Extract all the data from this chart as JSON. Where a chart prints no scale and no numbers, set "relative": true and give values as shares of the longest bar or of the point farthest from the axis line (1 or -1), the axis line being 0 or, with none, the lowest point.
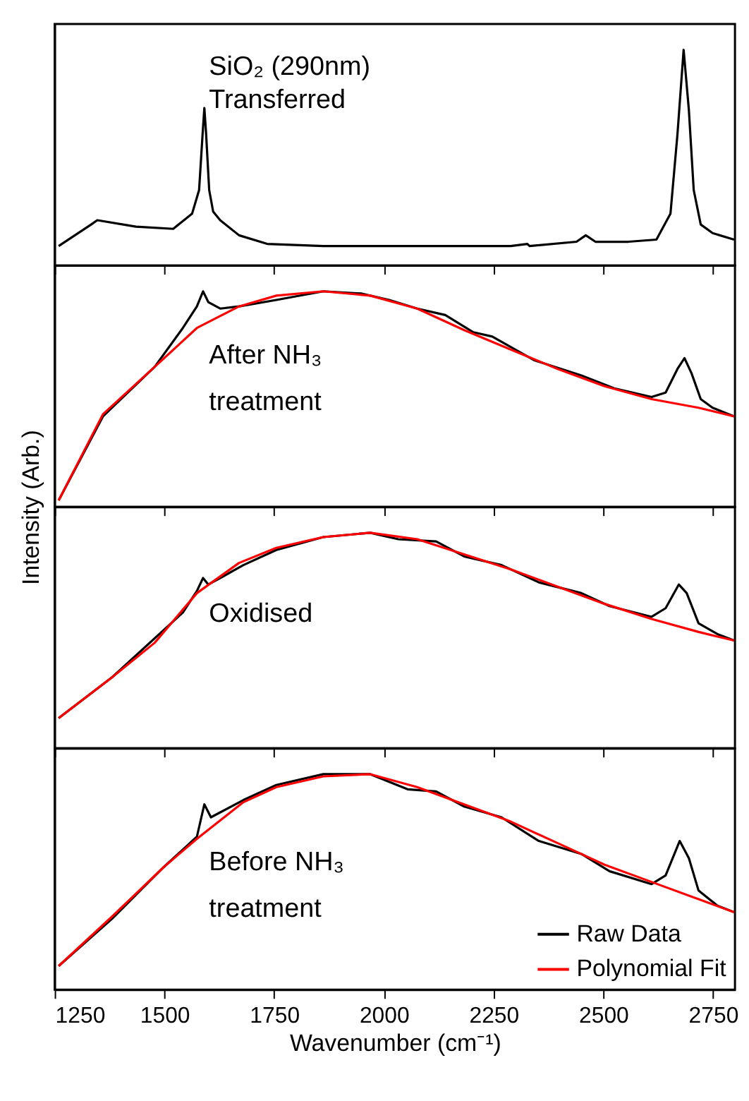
{
  "chart_data": [
    {
      "type": "line",
      "relative": true,
      "xlim": [
        1250,
        2800
      ],
      "xticks": [
        1250,
        1500,
        1750,
        2000,
        2250,
        2500,
        2750
      ],
      "tick_labels": false,
      "annotations": [
        "SiO₂ (290nm)",
        "Transferred"
      ],
      "series": [
        {
          "color": "#000000",
          "x": [
            1259,
            1333,
            1347,
            1435,
            1520,
            1563,
            1579,
            1587,
            1591,
            1595,
            1602,
            1611,
            1627,
            1670,
            1734,
            1862,
            2076,
            2289,
            2327,
            2332,
            2439,
            2460,
            2482,
            2557,
            2621,
            2653,
            2669,
            2683,
            2695,
            2706,
            2722,
            2749,
            2798
          ],
          "values": [
            0.09,
            0.19,
            0.21,
            0.18,
            0.17,
            0.24,
            0.35,
            0.61,
            0.73,
            0.61,
            0.35,
            0.25,
            0.21,
            0.14,
            0.1,
            0.09,
            0.09,
            0.09,
            0.1,
            0.09,
            0.11,
            0.14,
            0.11,
            0.11,
            0.12,
            0.24,
            0.61,
            1.0,
            0.72,
            0.35,
            0.19,
            0.15,
            0.12
          ]
        }
      ]
    },
    {
      "type": "line",
      "relative": true,
      "xlim": [
        1250,
        2800
      ],
      "xticks": [
        1250,
        1500,
        1750,
        2000,
        2250,
        2500,
        2750
      ],
      "tick_labels": false,
      "ylabel": "Intensity (Arb.)",
      "annotations": [
        "After NH₃",
        "treatment"
      ],
      "series": [
        {
          "color": "#000000",
          "x": [
            1259,
            1360,
            1478,
            1542,
            1574,
            1588,
            1600,
            1627,
            1670,
            1755,
            1862,
            1948,
            2012,
            2076,
            2140,
            2204,
            2247,
            2343,
            2450,
            2525,
            2610,
            2642,
            2669,
            2685,
            2701,
            2722,
            2749,
            2798
          ],
          "values": [
            0.03,
            0.42,
            0.65,
            0.83,
            0.93,
            1.0,
            0.95,
            0.92,
            0.93,
            0.96,
            1.0,
            0.99,
            0.96,
            0.92,
            0.89,
            0.81,
            0.79,
            0.68,
            0.61,
            0.55,
            0.51,
            0.53,
            0.64,
            0.69,
            0.62,
            0.5,
            0.46,
            0.42
          ]
        },
        {
          "type": "line",
          "color": "#ff0000",
          "x": [
            1259,
            1360,
            1478,
            1574,
            1670,
            1755,
            1862,
            1969,
            2076,
            2183,
            2289,
            2396,
            2503,
            2610,
            2717,
            2798
          ],
          "values": [
            0.03,
            0.43,
            0.65,
            0.83,
            0.93,
            0.98,
            1.0,
            0.98,
            0.92,
            0.82,
            0.73,
            0.64,
            0.56,
            0.5,
            0.46,
            0.42
          ]
        }
      ]
    },
    {
      "type": "line",
      "relative": true,
      "xlim": [
        1250,
        2800
      ],
      "xticks": [
        1250,
        1500,
        1750,
        2000,
        2250,
        2500,
        2750
      ],
      "tick_labels": false,
      "annotations": [
        "Oxidised"
      ],
      "series": [
        {
          "color": "#000000",
          "x": [
            1259,
            1381,
            1542,
            1574,
            1588,
            1600,
            1627,
            1680,
            1755,
            1862,
            1969,
            2033,
            2119,
            2183,
            2268,
            2353,
            2450,
            2514,
            2610,
            2642,
            2672,
            2690,
            2717,
            2760,
            2798
          ],
          "values": [
            0.14,
            0.33,
            0.63,
            0.73,
            0.79,
            0.76,
            0.79,
            0.85,
            0.92,
            0.98,
            1.0,
            0.97,
            0.96,
            0.89,
            0.85,
            0.77,
            0.72,
            0.66,
            0.61,
            0.65,
            0.76,
            0.72,
            0.58,
            0.53,
            0.5
          ]
        },
        {
          "type": "line",
          "color": "#ff0000",
          "x": [
            1259,
            1381,
            1478,
            1574,
            1670,
            1755,
            1862,
            1969,
            2076,
            2183,
            2289,
            2396,
            2503,
            2610,
            2717,
            2798
          ],
          "values": [
            0.14,
            0.33,
            0.49,
            0.72,
            0.86,
            0.93,
            0.98,
            1.0,
            0.97,
            0.9,
            0.83,
            0.75,
            0.67,
            0.6,
            0.54,
            0.5
          ]
        }
      ]
    },
    {
      "type": "line",
      "relative": true,
      "xlim": [
        1250,
        2800
      ],
      "xticks": [
        1250,
        1500,
        1750,
        2000,
        2250,
        2500,
        2750
      ],
      "tick_labels": "x",
      "xlabel": "Wavenumber (cm⁻¹)",
      "legend": "bottom right",
      "annotations": [
        "Before NH₃",
        "treatment"
      ],
      "series": [
        {
          "name": "Raw Data",
          "color": "#000000",
          "x": [
            1259,
            1381,
            1499,
            1574,
            1591,
            1606,
            1680,
            1755,
            1862,
            1969,
            2054,
            2119,
            2183,
            2268,
            2353,
            2450,
            2514,
            2610,
            2642,
            2674,
            2695,
            2717,
            2760,
            2798
          ],
          "values": [
            0.11,
            0.33,
            0.57,
            0.71,
            0.86,
            0.8,
            0.88,
            0.95,
            1.0,
            1.0,
            0.93,
            0.92,
            0.85,
            0.8,
            0.69,
            0.63,
            0.55,
            0.49,
            0.53,
            0.69,
            0.61,
            0.46,
            0.39,
            0.36
          ]
        },
        {
          "name": "Polynomial Fit",
          "type": "line",
          "color": "#ff0000",
          "x": [
            1259,
            1381,
            1499,
            1574,
            1680,
            1755,
            1862,
            1969,
            2076,
            2183,
            2289,
            2396,
            2503,
            2610,
            2717,
            2798
          ],
          "values": [
            0.11,
            0.34,
            0.57,
            0.7,
            0.87,
            0.94,
            0.99,
            1.0,
            0.94,
            0.86,
            0.78,
            0.68,
            0.58,
            0.5,
            0.42,
            0.36
          ]
        }
      ]
    }
  ]
}
